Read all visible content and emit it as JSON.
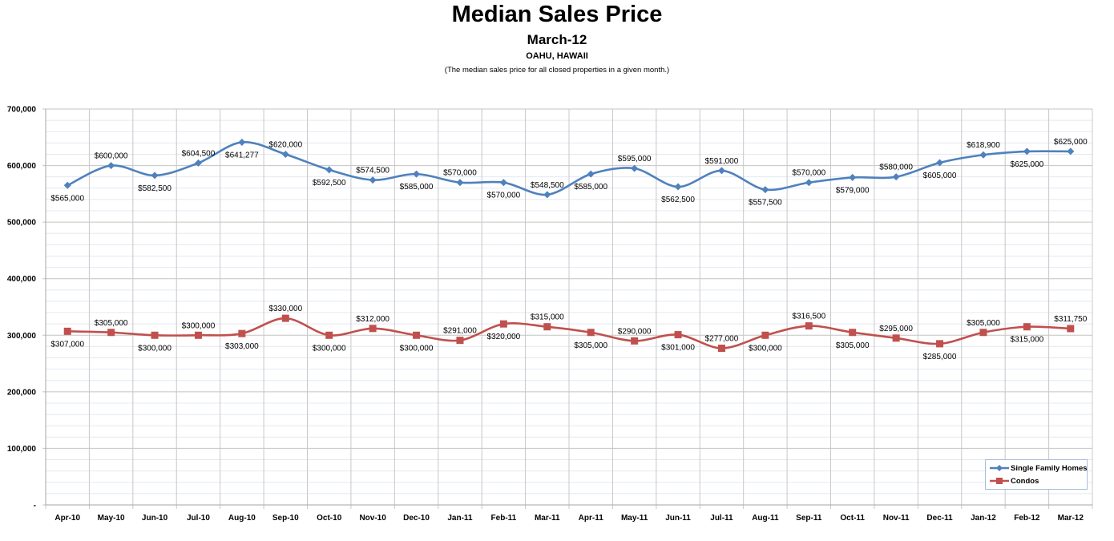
{
  "chart_data": {
    "type": "line",
    "title": "Median Sales Price",
    "subtitle": "March-12",
    "region": "OAHU, HAWAII",
    "note": "(The median sales price for all closed properties in a given month.)",
    "xlabel": "",
    "ylabel": "",
    "ylim": [
      0,
      700000
    ],
    "yticks": [
      0,
      100000,
      200000,
      300000,
      400000,
      500000,
      600000,
      700000
    ],
    "ytick_labels": [
      "-",
      "100,000",
      "200,000",
      "300,000",
      "400,000",
      "500,000",
      "600,000",
      "700,000"
    ],
    "minor_gridline_step": 20000,
    "grid": true,
    "smoothed": true,
    "legend_position": "bottom-right",
    "categories": [
      "Apr-10",
      "May-10",
      "Jun-10",
      "Jul-10",
      "Aug-10",
      "Sep-10",
      "Oct-10",
      "Nov-10",
      "Dec-10",
      "Jan-11",
      "Feb-11",
      "Mar-11",
      "Apr-11",
      "May-11",
      "Jun-11",
      "Jul-11",
      "Aug-11",
      "Sep-11",
      "Oct-11",
      "Nov-11",
      "Dec-11",
      "Jan-12",
      "Feb-12",
      "Mar-12"
    ],
    "series": [
      {
        "name": "Single Family Homes",
        "color": "#4f81bd",
        "marker": "diamond",
        "values": [
          565000,
          600000,
          582500,
          604500,
          641277,
          620000,
          592500,
          574500,
          585000,
          570000,
          570000,
          548500,
          585000,
          595000,
          562500,
          591000,
          557500,
          570000,
          579000,
          580000,
          605000,
          618900,
          625000,
          625000
        ],
        "labels": [
          "$565,000",
          "$600,000",
          "$582,500",
          "$604,500",
          "$641,277",
          "$620,000",
          "$592,500",
          "$574,500",
          "$585,000",
          "$570,000",
          "$570,000",
          "$548,500",
          "$585,000",
          "$595,000",
          "$562,500",
          "$591,000",
          "$557,500",
          "$570,000",
          "$579,000",
          "$580,000",
          "$605,000",
          "$618,900",
          "$625,000",
          "$625,000"
        ],
        "label_positions": [
          "below",
          "above",
          "below",
          "above",
          "below",
          "above",
          "below",
          "above",
          "below",
          "above",
          "below",
          "above",
          "below",
          "above",
          "below",
          "above",
          "below",
          "above",
          "below",
          "above",
          "below",
          "above",
          "below",
          "above"
        ]
      },
      {
        "name": "Condos",
        "color": "#c0504d",
        "marker": "square",
        "values": [
          307000,
          305000,
          300000,
          300000,
          303000,
          330000,
          300000,
          312000,
          300000,
          291000,
          320000,
          315000,
          305000,
          290000,
          301000,
          277000,
          300000,
          316500,
          305000,
          295000,
          285000,
          305000,
          315000,
          311750
        ],
        "labels": [
          "$307,000",
          "$305,000",
          "$300,000",
          "$300,000",
          "$303,000",
          "$330,000",
          "$300,000",
          "$312,000",
          "$300,000",
          "$291,000",
          "$320,000",
          "$315,000",
          "$305,000",
          "$290,000",
          "$301,000",
          "$277,000",
          "$300,000",
          "$316,500",
          "$305,000",
          "$295,000",
          "$285,000",
          "$305,000",
          "$315,000",
          "$311,750"
        ],
        "label_positions": [
          "below",
          "above",
          "below",
          "above",
          "below",
          "above",
          "below",
          "above",
          "below",
          "above",
          "below",
          "above",
          "below",
          "above",
          "below",
          "above",
          "below",
          "above",
          "below",
          "above",
          "below",
          "above",
          "below",
          "above"
        ]
      }
    ]
  }
}
